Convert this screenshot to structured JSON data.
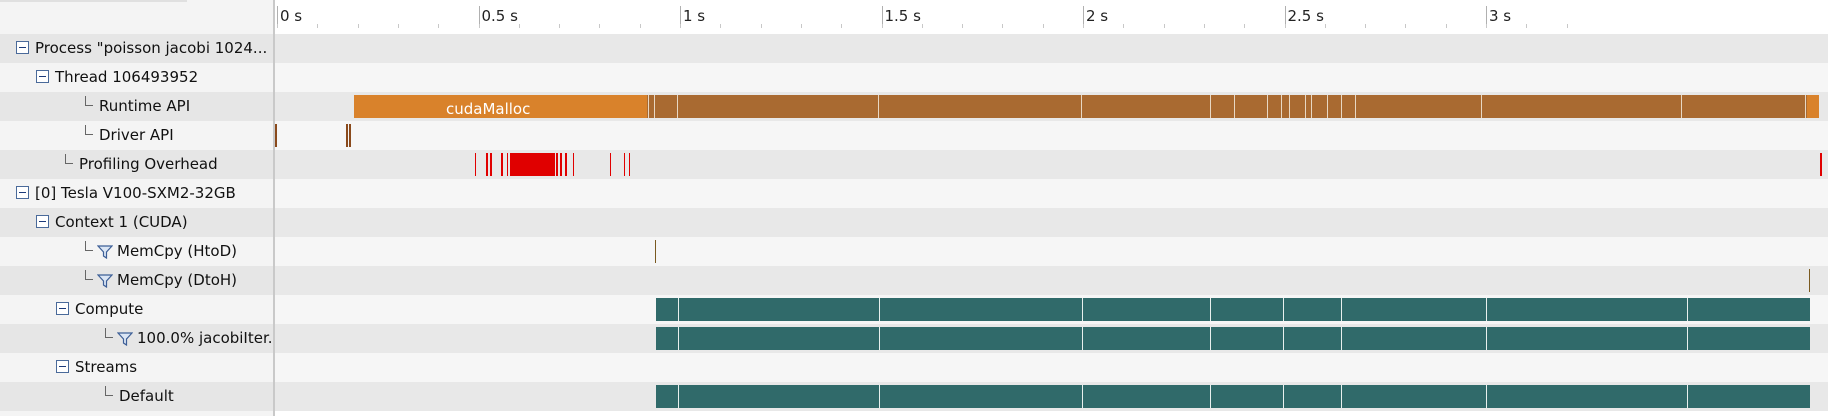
{
  "ruler": {
    "ticks": [
      {
        "label": "0 s",
        "value": 0
      },
      {
        "label": "0.5 s",
        "value": 0.5
      },
      {
        "label": "1 s",
        "value": 1
      },
      {
        "label": "1.5 s",
        "value": 1.5
      },
      {
        "label": "2 s",
        "value": 2
      },
      {
        "label": "2.5 s",
        "value": 2.5
      },
      {
        "label": "3 s",
        "value": 3
      }
    ]
  },
  "tree": {
    "rows": [
      {
        "label": "Process \"poisson jacobi 1024...",
        "indent": 0,
        "expander": true,
        "elbow": false,
        "funnel": false
      },
      {
        "label": "Thread 106493952",
        "indent": 1,
        "expander": true,
        "elbow": false,
        "funnel": false
      },
      {
        "label": "Runtime API",
        "indent": 2,
        "expander": false,
        "elbow": true,
        "funnel": false
      },
      {
        "label": "Driver API",
        "indent": 2,
        "expander": false,
        "elbow": true,
        "funnel": false
      },
      {
        "label": "Profiling Overhead",
        "indent": 1,
        "expander": false,
        "elbow": true,
        "funnel": false
      },
      {
        "label": "[0] Tesla V100-SXM2-32GB",
        "indent": 0,
        "expander": true,
        "elbow": false,
        "funnel": false
      },
      {
        "label": "Context 1 (CUDA)",
        "indent": 1,
        "expander": true,
        "elbow": false,
        "funnel": false
      },
      {
        "label": "MemCpy (HtoD)",
        "indent": 2,
        "expander": false,
        "elbow": true,
        "funnel": true
      },
      {
        "label": "MemCpy (DtoH)",
        "indent": 2,
        "expander": false,
        "elbow": true,
        "funnel": true
      },
      {
        "label": "Compute",
        "indent": 2,
        "expander": true,
        "elbow": false,
        "funnel": false
      },
      {
        "label": "100.0% jacobiIter...",
        "indent": 3,
        "expander": false,
        "elbow": true,
        "funnel": true
      },
      {
        "label": "Streams",
        "indent": 2,
        "expander": true,
        "elbow": false,
        "funnel": false
      },
      {
        "label": "Default",
        "indent": 3,
        "expander": false,
        "elbow": true,
        "funnel": false
      }
    ]
  },
  "timeline": {
    "runtime_label": "cudaMalloc",
    "colors": {
      "runtime": "#a96a31",
      "runtime_first": "#d9822b",
      "driver": "#8a4a1c",
      "overhead": "#e00000",
      "memcpy": "#7a5a20",
      "kernel": "#306a6a"
    }
  }
}
